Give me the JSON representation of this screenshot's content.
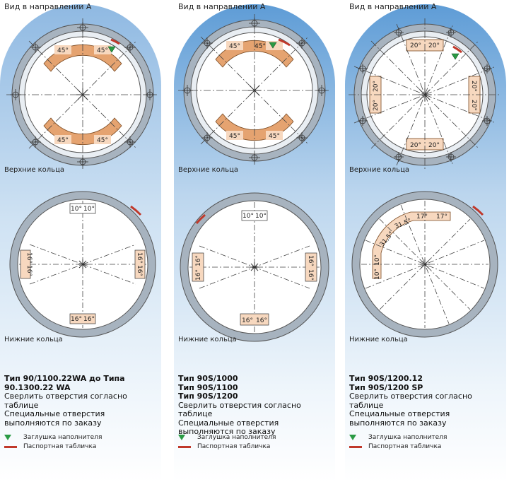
{
  "colors": {
    "accent_gradient_top": "#5e9cd6",
    "band_orange": "#e5a370",
    "band_orange_light": "#f7d8bf",
    "ring_gray": "#a7b3bf",
    "plug_green": "#2a9a44",
    "plate_red": "#c0392b"
  },
  "panels": [
    {
      "view_title": "Вид в направлении А",
      "upper_label": "Верхние кольца",
      "lower_label": "Нижние кольца",
      "upper_angles": [
        "45°",
        "45°",
        "45°",
        "45°"
      ],
      "lower_angles": [
        "10°",
        "10°",
        "16°",
        "16°",
        "16°",
        "16°",
        "16°",
        "16°"
      ],
      "type_names": [
        "Тип 90/1100.22WA до Типа 90.1300.22 WA"
      ],
      "notes": [
        "Сверлить отверстия согласно таблице",
        "Специальные отверстия выполняются по заказу"
      ]
    },
    {
      "view_title": "Вид в направлении А",
      "upper_label": "Верхние кольца",
      "lower_label": "Нижние кольца",
      "upper_angles": [
        "45°",
        "45°",
        "45°",
        "45°"
      ],
      "lower_angles": [
        "10°",
        "10°",
        "16°",
        "16°",
        "16°",
        "16°",
        "16°",
        "16°"
      ],
      "type_names": [
        "Тип 90S/1000",
        "Тип 90S/1100",
        "Тип 90S/1200"
      ],
      "notes": [
        "Сверлить отверстия согласно таблице",
        "Специальные отверстия выполняются по заказу"
      ]
    },
    {
      "view_title": "Вид в направлении А",
      "upper_label": "Верхние кольца",
      "lower_label": "Нижние кольца",
      "upper_angles": [
        "20°",
        "20°",
        "20°",
        "20°",
        "20°",
        "20°",
        "20°",
        "20°"
      ],
      "lower_angles": [
        "17°",
        "17°",
        "31,5°",
        "31,5°",
        "10°",
        "10°"
      ],
      "type_names": [
        "Тип 90S/1200.12",
        "Тип 90S/1200 SP"
      ],
      "notes": [
        "Сверлить отверстия согласно таблице",
        "Специальные отверстия выполняются по заказу"
      ]
    }
  ],
  "legend": {
    "plug": "Заглушка наполнителя",
    "plate": "Паспортная табличка"
  }
}
